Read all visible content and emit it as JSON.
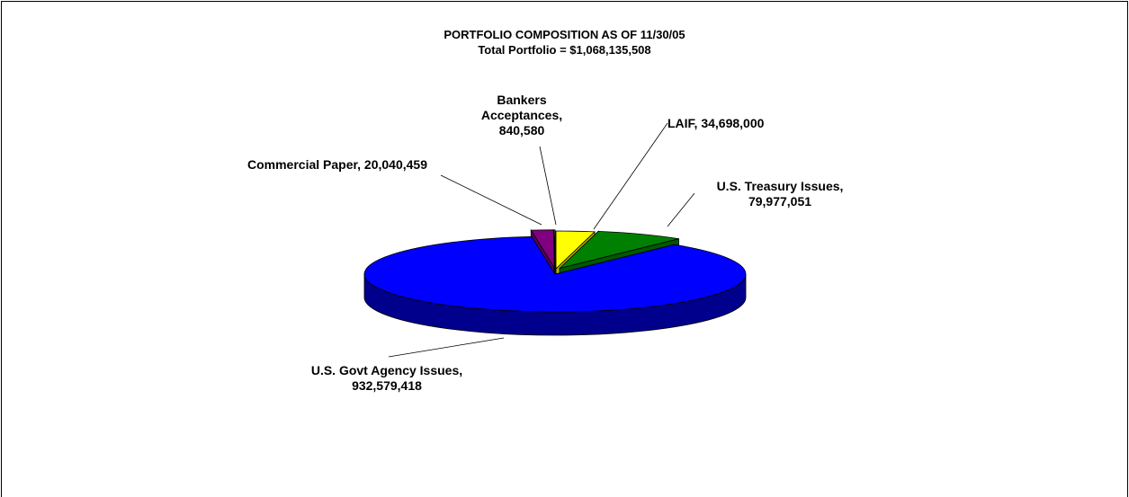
{
  "chart_data": {
    "type": "pie",
    "title": "PORTFOLIO COMPOSITION AS OF 11/30/05",
    "subtitle": "Total Portfolio = $1,068,135,508",
    "values": [
      34698000,
      79977051,
      932579418,
      20040459,
      840580
    ],
    "labels": [
      "LAIF, 34,698,000",
      "U.S. Treasury Issues, 79,977,051",
      "U.S. Govt Agency Issues, 932,579,418",
      "Commercial Paper, 20,040,459",
      "Bankers Acceptances, 840,580"
    ],
    "colors": [
      "#ffff00",
      "#008000",
      "#0000ff",
      "#800080",
      "#ffffff"
    ]
  }
}
